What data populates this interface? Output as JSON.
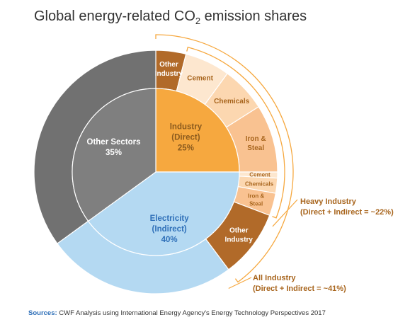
{
  "title": {
    "prefix": "Global energy-related CO",
    "subscript": "2",
    "suffix": " emission shares"
  },
  "source": {
    "label": "Sources:",
    "text": " CWF Analysis using International Energy Agency's Energy Technology Perspectives 2017"
  },
  "chart_data": {
    "type": "pie",
    "title": "Global energy-related CO2 emission shares",
    "inner_ring": [
      {
        "name": "Industry (Direct)",
        "line1": "Industry",
        "line2": "(Direct)",
        "value_label": "25%",
        "value": 25,
        "color": "#f6a83f",
        "text_color": "#8a5a1e"
      },
      {
        "name": "Electricity (Indirect)",
        "line1": "Electricity",
        "line2": "(Indirect)",
        "value_label": "40%",
        "value": 40,
        "color": "#b4d9f2",
        "text_color": "#2e6fb8"
      },
      {
        "name": "Other Sectors",
        "line1": "Other Sectors",
        "line2": "",
        "value_label": "35%",
        "value": 35,
        "color": "#7f7f7f",
        "text_color": "#ffffff"
      }
    ],
    "outer_ring": [
      {
        "name": "Other Industry (Direct)",
        "lines": [
          "Other",
          "Industry"
        ],
        "value": 4,
        "color": "#b16a29",
        "text_color": "#ffffff"
      },
      {
        "name": "Cement (Direct)",
        "lines": [
          "Cement"
        ],
        "value": 6,
        "color": "#fde7cf",
        "text_color": "#a8651d"
      },
      {
        "name": "Chemicals (Direct)",
        "lines": [
          "Chemicals"
        ],
        "value": 6,
        "color": "#fcd7b0",
        "text_color": "#a8651d"
      },
      {
        "name": "Iron & Steal (Direct)",
        "lines": [
          "Iron &",
          "Steal"
        ],
        "value": 9,
        "color": "#f9c291",
        "text_color": "#a8651d"
      },
      {
        "name": "Cement (Indirect)",
        "lines": [
          "Cement"
        ],
        "value": 0.8,
        "color": "#fde7cf",
        "text_color": "#a8651d"
      },
      {
        "name": "Chemicals (Indirect)",
        "lines": [
          "Chemicals"
        ],
        "value": 2,
        "color": "#fcd7b0",
        "text_color": "#a8651d"
      },
      {
        "name": "Iron & Steal (Indirect)",
        "lines": [
          "Iron &",
          "Steal"
        ],
        "value": 3,
        "color": "#f9c291",
        "text_color": "#a8651d"
      },
      {
        "name": "Other Industry (Indirect)",
        "lines": [
          "Other",
          "Industry"
        ],
        "value": 9,
        "color": "#b16a29",
        "text_color": "#ffffff"
      },
      {
        "name": "Electricity (Other)",
        "lines": [],
        "value": 25.2,
        "color": "#b4d9f2",
        "text_color": "#2e6fb8"
      },
      {
        "name": "Other Sectors",
        "lines": [],
        "value": 35,
        "color": "#717171",
        "text_color": "#ffffff"
      }
    ],
    "annotations": [
      {
        "name": "heavy-industry",
        "line1": "Heavy Industry",
        "line2": "(Direct + Indirect = ~22%)",
        "color": "#a8651d",
        "arc_color": "#f6a83f"
      },
      {
        "name": "all-industry",
        "line1": "All Industry",
        "line2": "(Direct + Indirect = ~41%)",
        "color": "#a8651d",
        "arc_color": "#f6a83f"
      }
    ]
  }
}
